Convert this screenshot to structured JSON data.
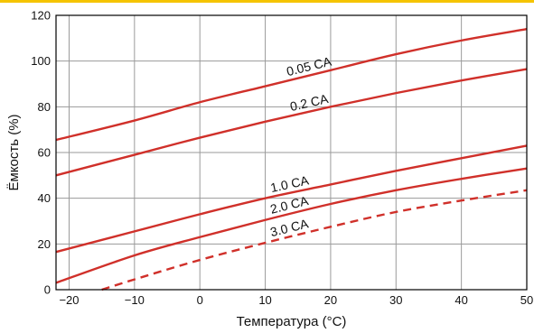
{
  "chart_data": {
    "type": "line",
    "title": "",
    "xlabel": "Температура (°C)",
    "ylabel": "Ёмкость (%)",
    "xlim": [
      -22,
      50
    ],
    "ylim": [
      0,
      120
    ],
    "x_ticks": [
      -20,
      -10,
      0,
      10,
      20,
      30,
      40,
      50
    ],
    "x_tick_labels": [
      "−20",
      "−10",
      "0",
      "10",
      "20",
      "30",
      "40",
      "50"
    ],
    "y_ticks": [
      0,
      20,
      40,
      60,
      80,
      100,
      120
    ],
    "y_tick_labels": [
      "0",
      "20",
      "40",
      "60",
      "80",
      "100",
      "120"
    ],
    "grid": true,
    "line_color": "#d0302a",
    "series": [
      {
        "name": "0.05 CA",
        "style": "solid",
        "x": [
          -22,
          -10,
          0,
          10,
          20,
          30,
          40,
          50
        ],
        "y": [
          65.5,
          74,
          82,
          89,
          96,
          103,
          109,
          114
        ]
      },
      {
        "name": "0.2 CA",
        "style": "solid",
        "x": [
          -22,
          -10,
          0,
          10,
          20,
          30,
          40,
          50
        ],
        "y": [
          50,
          59,
          66.5,
          73.5,
          80,
          86,
          91.5,
          96.5
        ]
      },
      {
        "name": "1.0 CA",
        "style": "solid",
        "x": [
          -22,
          -10,
          0,
          10,
          20,
          30,
          40,
          50
        ],
        "y": [
          16.5,
          25.5,
          33,
          40,
          46,
          52,
          57.5,
          63
        ]
      },
      {
        "name": "2.0 CA",
        "style": "solid",
        "x": [
          -22,
          -10,
          0,
          10,
          20,
          30,
          40,
          50
        ],
        "y": [
          3,
          15,
          23,
          30.5,
          37.5,
          43.5,
          48.5,
          53
        ]
      },
      {
        "name": "3.0 CA",
        "style": "dashed",
        "x": [
          -15,
          -10,
          0,
          10,
          20,
          30,
          40,
          50
        ],
        "y": [
          0,
          4.5,
          13,
          20.5,
          27.5,
          34,
          39,
          43.5
        ]
      }
    ]
  }
}
